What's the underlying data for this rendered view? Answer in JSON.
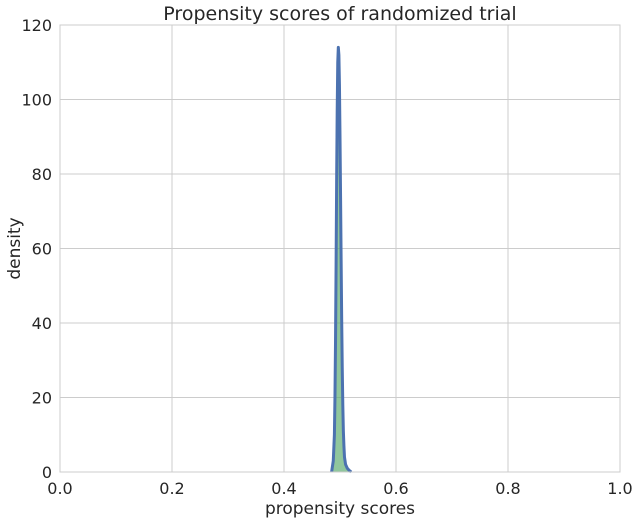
{
  "chart_data": {
    "type": "area",
    "title": "Propensity scores of randomized trial",
    "xlabel": "propensity scores",
    "ylabel": "density",
    "xlim": [
      0.0,
      1.0
    ],
    "ylim": [
      0,
      120
    ],
    "xticks": [
      "0.0",
      "0.2",
      "0.4",
      "0.6",
      "0.8",
      "1.0"
    ],
    "yticks": [
      "0",
      "20",
      "40",
      "60",
      "80",
      "100",
      "120"
    ],
    "grid": true,
    "legend": "none",
    "series": [
      {
        "name": "",
        "color": "#4c72b0",
        "fill_color": "#55a868",
        "x": [
          0.485,
          0.488,
          0.49,
          0.491,
          0.492,
          0.493,
          0.494,
          0.495,
          0.496,
          0.497,
          0.498,
          0.499,
          0.5,
          0.501,
          0.502,
          0.503,
          0.504,
          0.505,
          0.506,
          0.507,
          0.508,
          0.51,
          0.513,
          0.516,
          0.52
        ],
        "values": [
          0,
          3,
          10,
          20,
          35,
          55,
          78,
          97,
          110,
          114,
          112,
          104,
          90,
          74,
          57,
          41,
          28,
          18,
          11,
          7,
          4,
          2,
          1,
          0.5,
          0
        ]
      }
    ]
  }
}
